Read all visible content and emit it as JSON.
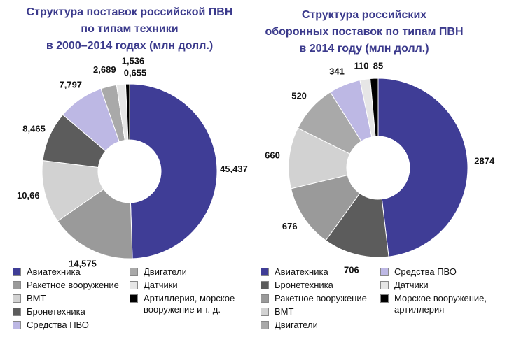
{
  "chart_data": [
    {
      "type": "pie",
      "title": [
        "Структура поставок российской ПВН",
        "по типам техники",
        "в 2000–2014 годах (млн долл.)"
      ],
      "categories": [
        "Авиатехника",
        "Ракетное вооружение",
        "ВМТ",
        "Бронетехника",
        "Средства ПВО",
        "Двигатели",
        "Датчики",
        "Артиллерия, морское вооружение и т. д."
      ],
      "values": [
        45.437,
        14.575,
        10.66,
        8.465,
        7.797,
        2.689,
        1.536,
        0.655
      ],
      "value_labels": [
        "45,437",
        "14,575",
        "10,66",
        "8,465",
        "7,797",
        "2,689",
        "1,536",
        "0,655"
      ],
      "colors": [
        "#3f3d96",
        "#9a9a9a",
        "#d2d2d2",
        "#5c5c5c",
        "#bdb8e4",
        "#a9a9a9",
        "#e6e6e6",
        "#000000"
      ]
    },
    {
      "type": "pie",
      "title": [
        "Структура российских",
        "оборонных поставок по типам ПВН",
        "в 2014 году (млн долл.)"
      ],
      "categories": [
        "Авиатехника",
        "Бронетехника",
        "Ракетное вооружение",
        "ВМТ",
        "Двигатели",
        "Средства ПВО",
        "Датчики",
        "Морское вооружение, артиллерия"
      ],
      "values": [
        2874,
        706,
        676,
        660,
        520,
        341,
        110,
        85
      ],
      "colors": [
        "#3f3d96",
        "#5c5c5c",
        "#9a9a9a",
        "#d2d2d2",
        "#a9a9a9",
        "#bdb8e4",
        "#e6e6e6",
        "#000000"
      ]
    }
  ]
}
